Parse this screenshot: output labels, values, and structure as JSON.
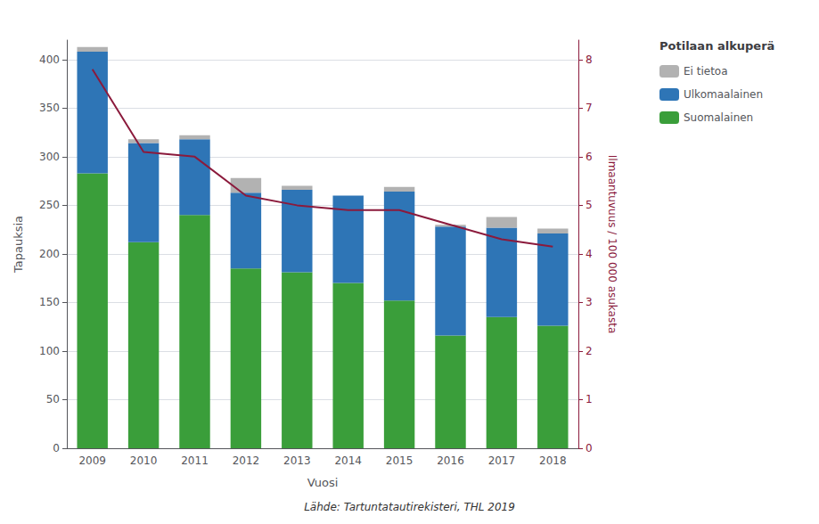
{
  "chart_data": {
    "type": "bar",
    "stacked": true,
    "categories": [
      "2009",
      "2010",
      "2011",
      "2012",
      "2013",
      "2014",
      "2015",
      "2016",
      "2017",
      "2018"
    ],
    "xlabel": "Vuosi",
    "ylabel": "Tapauksia",
    "y2label": "Ilmaantuvuus / 100 000 asukasta",
    "series": [
      {
        "name": "Suomalainen",
        "color": "#3a9e3a",
        "values": [
          283,
          212,
          240,
          185,
          181,
          170,
          152,
          116,
          135,
          126
        ]
      },
      {
        "name": "Ulkomaalainen",
        "color": "#2e75b6",
        "values": [
          125,
          102,
          78,
          78,
          85,
          90,
          112,
          112,
          92,
          95
        ]
      },
      {
        "name": "Ei tietoa",
        "color": "#b2b2b2",
        "values": [
          5,
          4,
          4,
          15,
          4,
          0,
          5,
          2,
          11,
          5
        ]
      },
      {
        "type": "line",
        "axis": "y2",
        "color": "#8b1a3c",
        "values": [
          7.8,
          6.1,
          6.0,
          5.2,
          5.0,
          4.9,
          4.9,
          4.6,
          4.3,
          4.15
        ]
      }
    ],
    "ylim": [
      0,
      420
    ],
    "yticks": [
      0,
      50,
      100,
      150,
      200,
      250,
      300,
      350,
      400
    ],
    "y2lim": [
      0,
      8.4
    ],
    "y2ticks": [
      0,
      1,
      2,
      3,
      4,
      5,
      6,
      7,
      8
    ],
    "grid": true,
    "legend": "upper right",
    "legend_title": "Potilaan alkuperä",
    "annotation": "Lähde: Tartuntatautirekisteri, THL 2019"
  }
}
